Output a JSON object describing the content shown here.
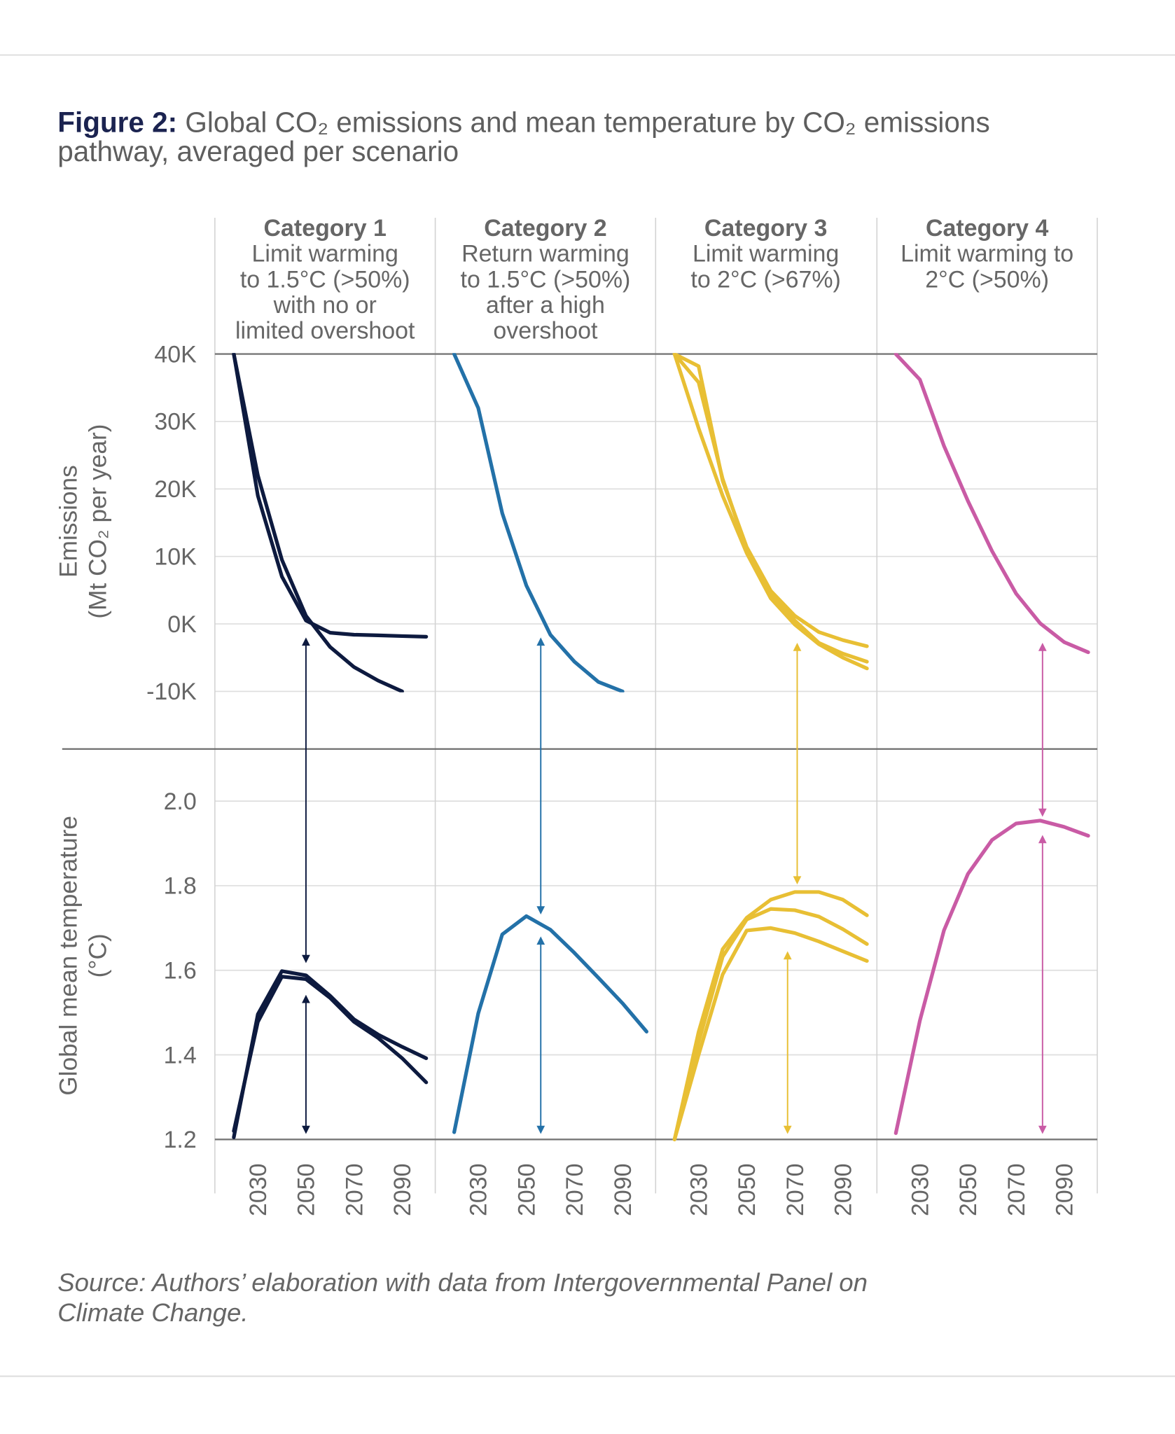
{
  "title": {
    "label": "Figure 2:",
    "line1": "Global CO₂ emissions and mean temperature by CO₂ emissions",
    "line2": "pathway, averaged per scenario"
  },
  "source": {
    "line1": "Source: Authors’ elaboration with data from Intergovernmental Panel on",
    "line2": "Climate Change."
  },
  "colors": {
    "title": "#1b2350",
    "text": "#666666",
    "grid": "#dddddd"
  },
  "chart_data": {
    "type": "line",
    "grid": true,
    "x_tick_labels": [
      "2030",
      "2050",
      "2070",
      "2090"
    ],
    "x": [
      2020,
      2030,
      2040,
      2050,
      2060,
      2070,
      2080,
      2090,
      2100
    ],
    "emissions_axis": {
      "label_line1": "Emissions",
      "label_line2": "(Mt CO₂ per year)",
      "ylim": [
        -10000,
        40000
      ],
      "tick_labels": [
        "40K",
        "30K",
        "20K",
        "10K",
        "0K",
        "-10K"
      ]
    },
    "temperature_axis": {
      "label_line1": "Global mean temperature",
      "label_line2": "(°C)",
      "ylim": [
        1.2,
        2.0
      ],
      "tick_labels": [
        "2.0",
        "1.8",
        "1.6",
        "1.4",
        "1.2"
      ]
    },
    "panels": [
      {
        "title": "Category 1",
        "subtitle_lines": [
          "Limit warming",
          "to 1.5°C (>50%)",
          "with no or",
          "limited overshoot"
        ],
        "color": "#0d1a3f",
        "emissions": [
          [
            40000,
            22000,
            9500,
            1200,
            -3400,
            -6400,
            -8400,
            -10000,
            null
          ],
          [
            40000,
            19000,
            7000,
            500,
            -1300,
            -1600,
            -1700,
            -1800,
            -1900
          ]
        ],
        "temperature": [
          [
            1.205,
            1.496,
            1.598,
            1.588,
            1.54,
            1.484,
            1.448,
            1.419,
            1.392
          ],
          [
            1.22,
            1.478,
            1.585,
            1.579,
            1.535,
            1.478,
            1.44,
            1.392,
            1.335
          ]
        ]
      },
      {
        "title": "Category 2",
        "subtitle_lines": [
          "Return warming",
          "to 1.5°C (>50%)",
          "after a high",
          "overshoot"
        ],
        "color": "#2371a8",
        "emissions": [
          [
            40000,
            32000,
            16400,
            5700,
            -1600,
            -5600,
            -8600,
            -10000,
            null
          ]
        ],
        "temperature": [
          [
            1.217,
            1.498,
            1.685,
            1.728,
            1.696,
            1.641,
            1.582,
            1.522,
            1.455
          ]
        ]
      },
      {
        "title": "Category 3",
        "subtitle_lines": [
          "Limit warming",
          "to 2°C (>67%)"
        ],
        "color": "#e8bf34",
        "emissions": [
          [
            40000,
            38200,
            21200,
            11400,
            4900,
            1200,
            -1200,
            -2400,
            -3300
          ],
          [
            40000,
            35800,
            21500,
            11000,
            4500,
            500,
            -2800,
            -4400,
            -5600
          ],
          [
            40000,
            29000,
            19000,
            10500,
            3800,
            -100,
            -3000,
            -5000,
            -6600
          ]
        ],
        "temperature": [
          [
            1.2,
            1.454,
            1.65,
            1.724,
            1.767,
            1.785,
            1.785,
            1.767,
            1.73
          ],
          [
            1.2,
            1.43,
            1.632,
            1.72,
            1.745,
            1.742,
            1.727,
            1.697,
            1.662
          ],
          [
            1.2,
            1.4,
            1.59,
            1.694,
            1.7,
            1.688,
            1.668,
            1.645,
            1.622
          ]
        ]
      },
      {
        "title": "Category 4",
        "subtitle_lines": [
          "Limit warming to",
          "2°C (>50%)"
        ],
        "color": "#c95ba5",
        "emissions": [
          [
            40000,
            36200,
            26400,
            18200,
            10800,
            4500,
            100,
            -2700,
            -4200
          ]
        ],
        "temperature": [
          [
            1.215,
            1.481,
            1.694,
            1.828,
            1.908,
            1.947,
            1.954,
            1.939,
            1.918
          ]
        ]
      }
    ]
  }
}
